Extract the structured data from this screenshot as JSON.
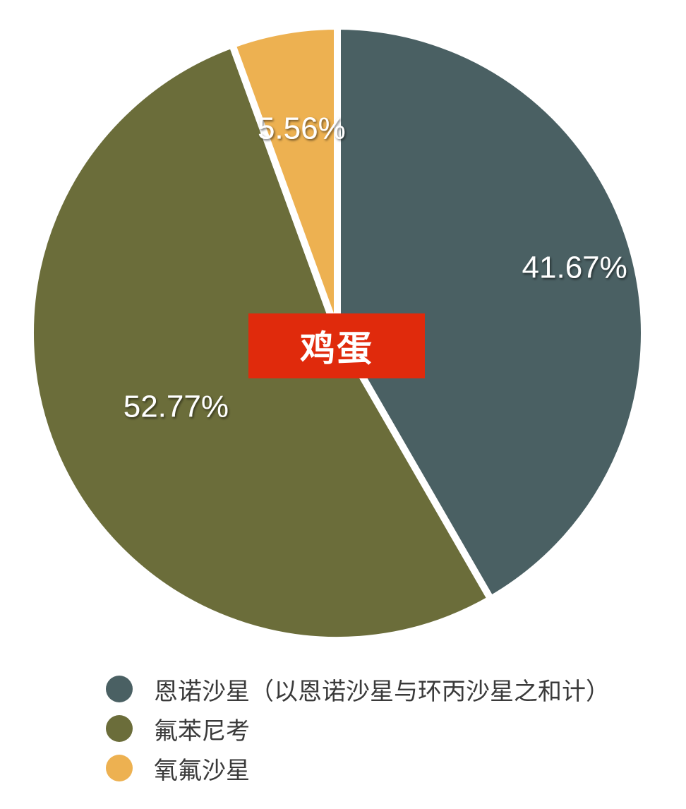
{
  "colors": {
    "background": "#ffffff",
    "separator": "#ffffff",
    "center_box": "#e02a0c",
    "label_text": "#ffffff",
    "legend_text": "#3a3a3a"
  },
  "center_label": "鸡蛋",
  "chart_data": {
    "type": "pie",
    "start": "12 o'clock",
    "direction": "clockwise",
    "title": "",
    "slices": [
      {
        "name": "恩诺沙星（以恩诺沙星与环丙沙星之和计）",
        "value": 41.67,
        "label": "41.67%",
        "color": "#4a6063"
      },
      {
        "name": "氟苯尼考",
        "value": 52.77,
        "label": "52.77%",
        "color": "#6b6d3a"
      },
      {
        "name": "氧氟沙星",
        "value": 5.56,
        "label": "5.56%",
        "color": "#edb151"
      }
    ],
    "legend": {
      "position": "bottom-left",
      "entries": [
        "恩诺沙星（以恩诺沙星与环丙沙星之和计）",
        "氟苯尼考",
        "氧氟沙星"
      ]
    }
  }
}
